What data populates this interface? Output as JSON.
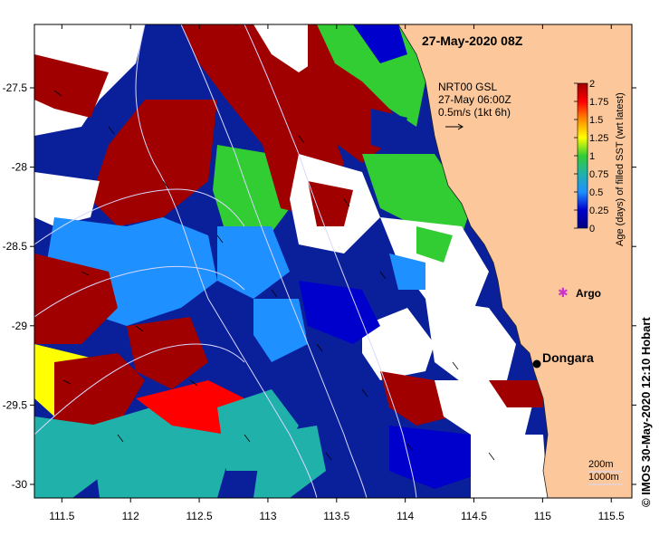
{
  "title": "27-May-2020 08Z",
  "current_legend": {
    "model": "NRT00 GSL",
    "time": "27-May 06:00Z",
    "scale": "0.5m/s (1kt 6h)"
  },
  "colorbar": {
    "label": "Age (days) of filled SST (wrt latest)",
    "ticks": [
      "2",
      "1.75",
      "1.5",
      "1.25",
      "1",
      "0.75",
      "0.5",
      "0.25",
      "0"
    ],
    "colors": [
      "#a00000",
      "#ff0000",
      "#ff8c00",
      "#ffff00",
      "#32cd32",
      "#20b2aa",
      "#1e90ff",
      "#0000cd",
      "#000080"
    ]
  },
  "axes": {
    "x_ticks": [
      "111.5",
      "112",
      "112.5",
      "113",
      "113.5",
      "114",
      "114.5",
      "115",
      "115.5"
    ],
    "y_ticks": [
      "-27.5",
      "-28",
      "-28.5",
      "-29",
      "-29.5",
      "-30"
    ]
  },
  "places": [
    {
      "name": "Argo",
      "symbol": "asterisk",
      "color": "#cc33cc"
    },
    {
      "name": "Dongara",
      "symbol": "dot",
      "color": "#000000"
    }
  ],
  "isobaths": {
    "labels": [
      "200m",
      "1000m"
    ]
  },
  "copyright": "© IMOS 30-May-2020 12:10 Hobart",
  "land_color": "#fcc89b"
}
